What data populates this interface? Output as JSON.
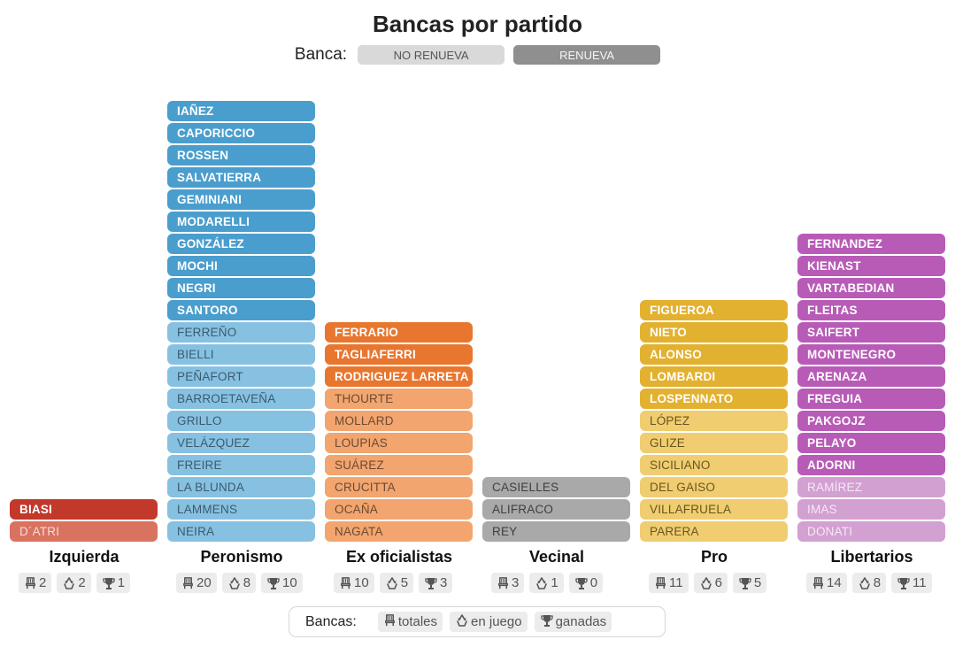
{
  "title": "Bancas por partido",
  "legend_top": {
    "label": "Banca:",
    "no_renueva": "NO RENUEVA",
    "renueva": "RENUEVA"
  },
  "legend_bottom": {
    "label": "Bancas:",
    "totales": "totales",
    "en_juego": "en juego",
    "ganadas": "ganadas"
  },
  "icons": {
    "totales": "seat-icon",
    "en_juego": "recycle-icon",
    "ganadas": "trophy-icon"
  },
  "chart_data": {
    "type": "bar",
    "title": "Bancas por partido",
    "categories": [
      "Izquierda",
      "Peronismo",
      "Ex oficialistas",
      "Vecinal",
      "Pro",
      "Libertarios"
    ],
    "series": [
      {
        "name": "RENUEVA",
        "values": [
          1,
          10,
          3,
          0,
          5,
          11
        ]
      },
      {
        "name": "NO RENUEVA",
        "values": [
          1,
          10,
          7,
          3,
          6,
          3
        ]
      }
    ],
    "parties": [
      {
        "name": "Izquierda",
        "color_renueva": "#c2382a",
        "color_norenueva": "#d9735f",
        "text_norenueva": "#f6dcd6",
        "renueva": [
          "BIASI"
        ],
        "no_renueva": [
          "D´ATRI"
        ],
        "totales": 2,
        "en_juego": 2,
        "ganadas": 1
      },
      {
        "name": "Peronismo",
        "color_renueva": "#4a9ece",
        "color_norenueva": "#86c1e2",
        "text_norenueva": "#3d5a6d",
        "renueva": [
          "IAÑEZ",
          "CAPORICCIO",
          "ROSSEN",
          "SALVATIERRA",
          "GEMINIANI",
          "MODARELLI",
          "GONZÁLEZ",
          "MOCHI",
          "NEGRI",
          "SANTORO"
        ],
        "no_renueva": [
          "FERREÑO",
          "BIELLI",
          "PEÑAFORT",
          "BARROETAVEÑA",
          "GRILLO",
          "VELÁZQUEZ",
          "FREIRE",
          "LA BLUNDA",
          "LAMMENS",
          "NEIRA"
        ],
        "totales": 20,
        "en_juego": 8,
        "ganadas": 10
      },
      {
        "name": "Ex oficialistas",
        "color_renueva": "#e8762f",
        "color_norenueva": "#f2a56e",
        "text_norenueva": "#6d4a33",
        "renueva": [
          "FERRARIO",
          "TAGLIAFERRI",
          "RODRIGUEZ LARRETA"
        ],
        "no_renueva": [
          "THOURTE",
          "MOLLARD",
          "LOUPIAS",
          "SUÁREZ",
          "CRUCITTA",
          "OCAÑA",
          "NAGATA"
        ],
        "totales": 10,
        "en_juego": 5,
        "ganadas": 3
      },
      {
        "name": "Vecinal",
        "color_renueva": "#8f8f8f",
        "color_norenueva": "#a9a9a9",
        "text_norenueva": "#3f3f3f",
        "renueva": [],
        "no_renueva": [
          "CASIELLES",
          "ALIFRACO",
          "REY"
        ],
        "totales": 3,
        "en_juego": 1,
        "ganadas": 0
      },
      {
        "name": "Pro",
        "color_renueva": "#e3b130",
        "color_norenueva": "#f0cd70",
        "text_norenueva": "#6a5520",
        "renueva": [
          "FIGUEROA",
          "NIETO",
          "ALONSO",
          "LOMBARDI",
          "LOSPENNATO"
        ],
        "no_renueva": [
          "LÓPEZ",
          "GLIZE",
          "SICILIANO",
          "DEL GAISO",
          "VILLAFRUELA",
          "PARERA"
        ],
        "totales": 11,
        "en_juego": 6,
        "ganadas": 5
      },
      {
        "name": "Libertarios",
        "color_renueva": "#b85bb7",
        "color_norenueva": "#d3a0d2",
        "text_norenueva": "#f6e8f6",
        "renueva": [
          "FERNANDEZ",
          "KIENAST",
          "VARTABEDIAN",
          "FLEITAS",
          "SAIFERT",
          "MONTENEGRO",
          "ARENAZA",
          "FREGUIA",
          "PAKGOJZ",
          "PELAYO",
          "ADORNI"
        ],
        "no_renueva": [
          "RAMÍREZ",
          "IMAS",
          "DONATI"
        ],
        "totales": 14,
        "en_juego": 8,
        "ganadas": 11
      }
    ]
  }
}
